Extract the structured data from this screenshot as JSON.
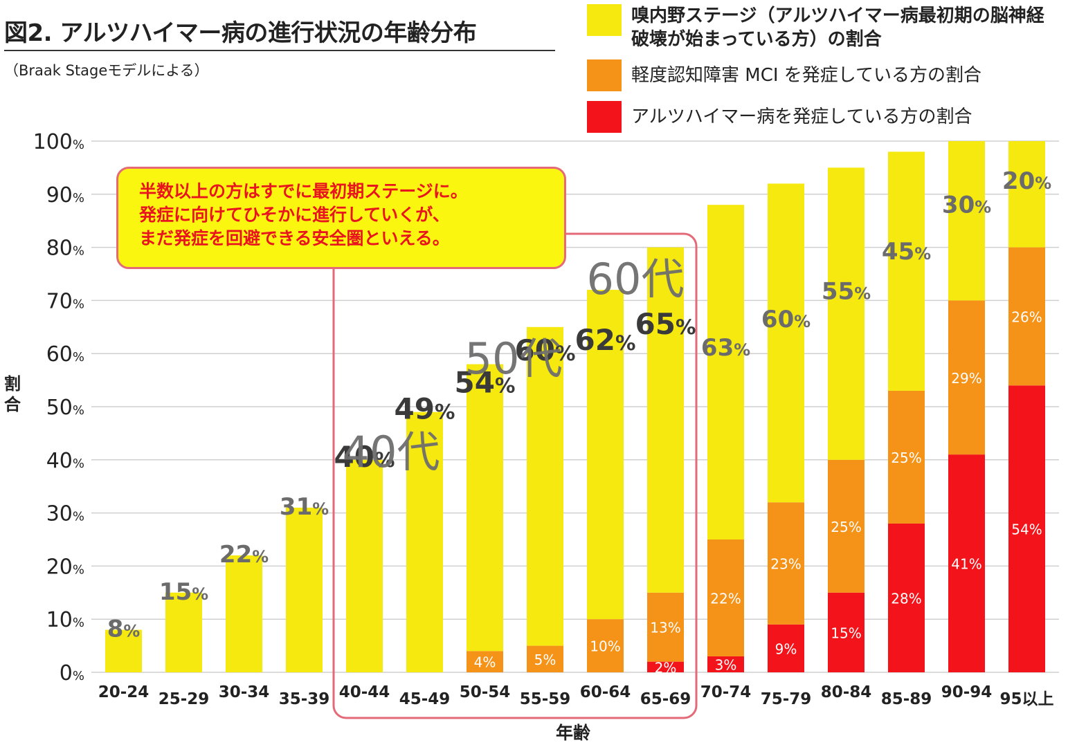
{
  "header": {
    "title": "図2. アルツハイマー病の進行状況の年齢分布",
    "subtitle": "（Braak Stageモデルによる）"
  },
  "legend": [
    {
      "label": "嗅内野ステージ（アルツハイマー病最初期の脳神経破壊が始まっている方）の割合",
      "color": "#f5e90f"
    },
    {
      "label": "軽度認知障害 MCI を発症している方の割合",
      "color": "#f59218"
    },
    {
      "label": "アルツハイマー病を発症している方の割合",
      "color": "#f2141a"
    }
  ],
  "callout": {
    "lines": [
      "半数以上の方はすでに最初期ステージに。",
      "発症に向けてひそかに進行していくが、",
      "まだ発症を回避できる安全圏といえる。"
    ]
  },
  "decade_labels": [
    "40代",
    "50代",
    "60代"
  ],
  "chart_data": {
    "type": "bar",
    "stacked": true,
    "xlabel": "年齢",
    "ylabel": "割合",
    "ylim": [
      0,
      100
    ],
    "yticks": [
      0,
      10,
      20,
      30,
      40,
      50,
      60,
      70,
      80,
      90,
      100
    ],
    "ytick_unit": "%",
    "categories": [
      "20-24",
      "25-29",
      "30-34",
      "35-39",
      "40-44",
      "45-49",
      "50-54",
      "55-59",
      "60-64",
      "65-69",
      "70-74",
      "75-79",
      "80-84",
      "85-89",
      "90-94",
      "95以上"
    ],
    "series": [
      {
        "name": "アルツハイマー病",
        "color": "#f2141a",
        "values": [
          0,
          0,
          0,
          0,
          0,
          0,
          0,
          0,
          0,
          2,
          3,
          9,
          15,
          28,
          41,
          54
        ]
      },
      {
        "name": "MCI",
        "color": "#f59218",
        "values": [
          0,
          0,
          0,
          0,
          0,
          0,
          4,
          5,
          10,
          13,
          22,
          23,
          25,
          25,
          29,
          26
        ]
      },
      {
        "name": "嗅内野ステージ",
        "color": "#f5e90f",
        "values": [
          8,
          15,
          22,
          31,
          40,
          49,
          54,
          60,
          62,
          65,
          63,
          60,
          55,
          45,
          30,
          20
        ]
      }
    ],
    "highlight_range": [
      "40-44",
      "65-69"
    ],
    "grid": true
  }
}
